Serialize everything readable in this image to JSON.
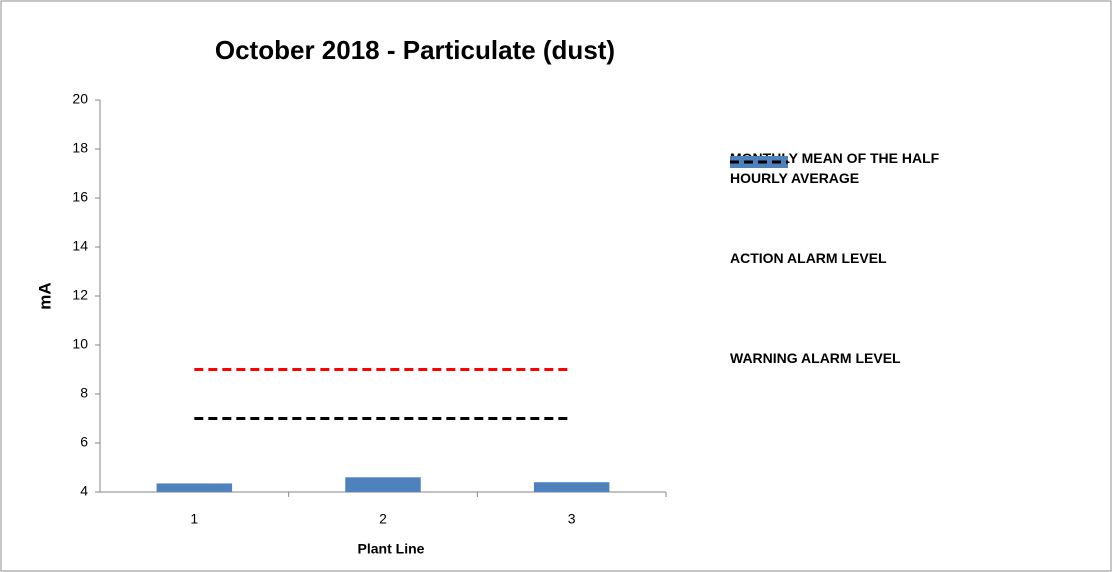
{
  "chart_data": {
    "type": "bar",
    "title": "October 2018 - Particulate (dust)",
    "x_label": "Plant Line",
    "y_label": "mA",
    "categories": [
      "1",
      "2",
      "3"
    ],
    "series": [
      {
        "name": "MONTHLY MEAN OF THE HALF HOURLY AVERAGE",
        "type": "bar",
        "color": "#4f81bd",
        "values": [
          4.35,
          4.6,
          4.4
        ]
      },
      {
        "name": "ACTION ALARM LEVEL",
        "type": "line",
        "dashed": true,
        "color": "#ff0000",
        "values": [
          9,
          9,
          9
        ]
      },
      {
        "name": "WARNING ALARM LEVEL",
        "type": "line",
        "dashed": true,
        "color": "#000000",
        "values": [
          7,
          7,
          7
        ]
      }
    ],
    "ylim": [
      4,
      20
    ],
    "yticks": [
      4,
      6,
      8,
      10,
      12,
      14,
      16,
      18,
      20
    ],
    "grid": false,
    "legend": "right"
  }
}
